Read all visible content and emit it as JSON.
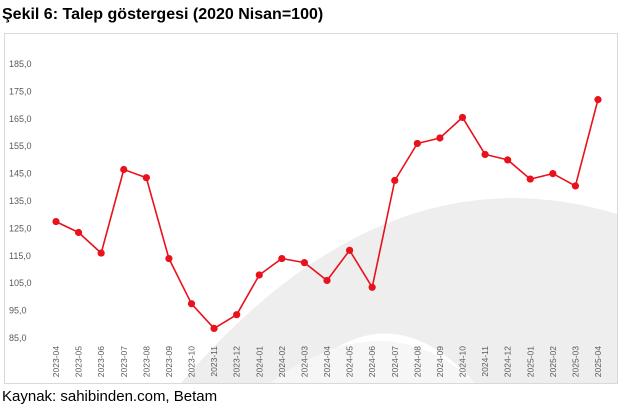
{
  "figure": {
    "title": "Şekil 6: Talep göstergesi (2020 Nisan=100)",
    "source": "Kaynak: sahibinden.com, Betam"
  },
  "colors": {
    "series": "#e8111c",
    "watermark": "#eeeeee",
    "axis_text": "#595959"
  },
  "chart_data": {
    "type": "line",
    "title": "Şekil 6: Talep göstergesi (2020 Nisan=100)",
    "xlabel": "",
    "ylabel": "",
    "ylim": [
      85,
      185
    ],
    "yticks": [
      85,
      95,
      105,
      115,
      125,
      135,
      145,
      155,
      165,
      175,
      185
    ],
    "grid": false,
    "legend": "none",
    "categories": [
      "2023-04",
      "2023-05",
      "2023-06",
      "2023-07",
      "2023-08",
      "2023-09",
      "2023-10",
      "2023-11",
      "2023-12",
      "2024-01",
      "2024-02",
      "2024-03",
      "2024-04",
      "2024-05",
      "2024-06",
      "2024-07",
      "2024-08",
      "2024-09",
      "2024-10",
      "2024-11",
      "2024-12",
      "2025-01",
      "2025-02",
      "2025-03",
      "2025-04"
    ],
    "series": [
      {
        "name": "",
        "values": [
          127.5,
          123.5,
          116,
          146.5,
          143.5,
          114,
          97.5,
          88.5,
          93.5,
          108,
          114,
          112.5,
          106,
          117,
          103.5,
          142.5,
          156,
          158,
          165.5,
          152,
          150,
          143,
          145,
          140.5,
          172
        ]
      }
    ]
  }
}
